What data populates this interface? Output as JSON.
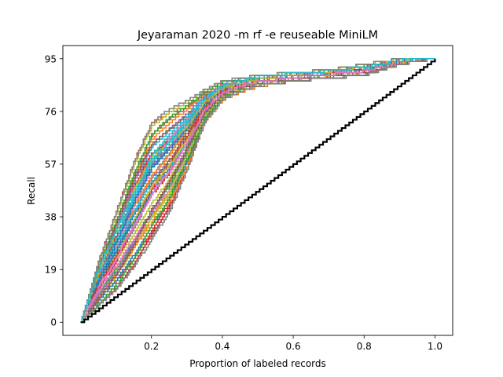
{
  "chart_data": {
    "type": "line",
    "title": "Jeyaraman 2020 -m rf -e reuseable MiniLM",
    "xlabel": "Proportion of labeled records",
    "ylabel": "Recall",
    "xlim": [
      -0.05,
      1.05
    ],
    "ylim": [
      -4.75,
      99.75
    ],
    "x_ticks": [
      0.2,
      0.4,
      0.6,
      0.8,
      1.0
    ],
    "x_tick_labels": [
      "0.2",
      "0.4",
      "0.6",
      "0.8",
      "1.0"
    ],
    "y_ticks": [
      0,
      19,
      38,
      57,
      76,
      95
    ],
    "y_tick_labels": [
      "0",
      "19",
      "38",
      "57",
      "76",
      "95"
    ],
    "grid": false,
    "legend": "none",
    "reference_line": {
      "x": [
        0,
        1
      ],
      "y": [
        0,
        95
      ],
      "color": "#000000",
      "style": "step"
    },
    "total_relevant": 95,
    "envelope": {
      "x": [
        0.0,
        0.05,
        0.1,
        0.15,
        0.2,
        0.25,
        0.3,
        0.35,
        0.4,
        0.45,
        0.5,
        0.6,
        0.7,
        0.8,
        0.9,
        1.0
      ],
      "upper": [
        0,
        22,
        40,
        58,
        72,
        77,
        80,
        84,
        87,
        88,
        89,
        90,
        91,
        93,
        95,
        95
      ],
      "lower": [
        0,
        6,
        12,
        20,
        30,
        40,
        55,
        72,
        80,
        83,
        85,
        87,
        88,
        89,
        93,
        95
      ]
    },
    "series_count": 60,
    "series_colors": [
      "#1f77b4",
      "#ff7f0e",
      "#2ca02c",
      "#d62728",
      "#9467bd",
      "#8c564b",
      "#e377c2",
      "#7f7f7f",
      "#bcbd22",
      "#17becf"
    ]
  }
}
